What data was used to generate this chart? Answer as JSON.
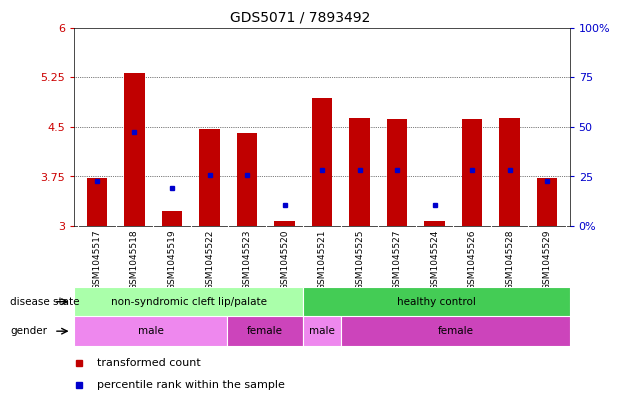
{
  "title": "GDS5071 / 7893492",
  "samples": [
    "GSM1045517",
    "GSM1045518",
    "GSM1045519",
    "GSM1045522",
    "GSM1045523",
    "GSM1045520",
    "GSM1045521",
    "GSM1045525",
    "GSM1045527",
    "GSM1045524",
    "GSM1045526",
    "GSM1045528",
    "GSM1045529"
  ],
  "bar_bottom": [
    3.0,
    3.0,
    3.0,
    3.0,
    3.0,
    3.0,
    3.0,
    3.0,
    3.0,
    3.0,
    3.0,
    3.0,
    3.0
  ],
  "bar_top": [
    3.73,
    5.31,
    3.22,
    4.47,
    4.41,
    3.07,
    4.93,
    4.63,
    4.62,
    3.07,
    4.62,
    4.63,
    3.73
  ],
  "blue_dot_y": [
    3.68,
    4.42,
    3.57,
    3.77,
    3.77,
    3.32,
    3.84,
    3.84,
    3.84,
    3.32,
    3.84,
    3.84,
    3.68
  ],
  "ylim_left": [
    3.0,
    6.0
  ],
  "yticks_left": [
    3.0,
    3.75,
    4.5,
    5.25,
    6.0
  ],
  "ytick_labels_left": [
    "3",
    "3.75",
    "4.5",
    "5.25",
    "6"
  ],
  "ylim_right": [
    0,
    100
  ],
  "yticks_right": [
    0,
    25,
    50,
    75,
    100
  ],
  "ytick_labels_right": [
    "0%",
    "25",
    "50",
    "75",
    "100%"
  ],
  "bar_color": "#c00000",
  "dot_color": "#0000cc",
  "grid_color": "#000000",
  "bg_color": "#ffffff",
  "disease_state_groups": [
    {
      "label": "non-syndromic cleft lip/palate",
      "start": 0,
      "end": 6,
      "color": "#aaffaa"
    },
    {
      "label": "healthy control",
      "start": 6,
      "end": 13,
      "color": "#44cc55"
    }
  ],
  "gender_groups": [
    {
      "label": "male",
      "start": 0,
      "end": 4,
      "color": "#ee88ee"
    },
    {
      "label": "female",
      "start": 4,
      "end": 6,
      "color": "#cc44bb"
    },
    {
      "label": "male",
      "start": 6,
      "end": 7,
      "color": "#ee88ee"
    },
    {
      "label": "female",
      "start": 7,
      "end": 13,
      "color": "#cc44bb"
    }
  ],
  "legend_items": [
    {
      "label": "transformed count",
      "color": "#c00000"
    },
    {
      "label": "percentile rank within the sample",
      "color": "#0000cc"
    }
  ],
  "ylabel_left_color": "#cc0000",
  "ylabel_right_color": "#0000cc",
  "n_samples": 13
}
